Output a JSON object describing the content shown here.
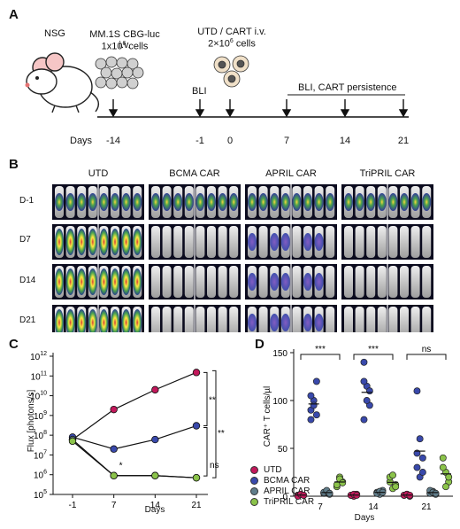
{
  "panels": {
    "a": "A",
    "b": "B",
    "c": "C",
    "d": "D"
  },
  "timeline": {
    "mouse_label": "NSG",
    "injection_label_1": "MM.1S CBG-luc i.v.",
    "injection_label_2_prefix": "1x10",
    "injection_label_2_exp": "6",
    "injection_label_2_suffix": " cells",
    "treatment_label_1": "UTD / CART i.v.",
    "treatment_label_2": "2×10",
    "treatment_label_2_exp": "6",
    "treatment_label_2_suffix": " cells",
    "bli_label": "BLI",
    "persistence_label": "BLI, CART persistence",
    "days_label": "Days",
    "days": [
      "-14",
      "-1",
      "0",
      "7",
      "14",
      "21"
    ]
  },
  "imaging": {
    "groups": [
      "UTD",
      "BCMA CAR",
      "APRIL CAR",
      "TriPRIL CAR"
    ],
    "timepoints": [
      "D-1",
      "D7",
      "D14",
      "D21"
    ]
  },
  "colors": {
    "utd": "#c2185b",
    "bcma": "#3949ab",
    "april": "#607d8b",
    "tripril": "#8bc34a"
  },
  "chart_data": [
    {
      "type": "line",
      "xlabel": "Days",
      "ylabel": "Flux [photons/s]",
      "x": [
        "-1",
        "7",
        "14",
        "21"
      ],
      "y_scale": "log",
      "ylim": [
        100000,
        1000000000000
      ],
      "yticks": [
        "10",
        "10",
        "10",
        "10",
        "10",
        "10",
        "10",
        "10"
      ],
      "ytick_exps": [
        "5",
        "6",
        "7",
        "8",
        "9",
        "10",
        "11",
        "12"
      ],
      "series": [
        {
          "name": "UTD",
          "values": [
            60000000,
            2000000000,
            20000000000,
            150000000000
          ]
        },
        {
          "name": "BCMA CAR",
          "values": [
            80000000,
            20000000,
            60000000,
            300000000
          ]
        },
        {
          "name": "APRIL CAR",
          "values": [
            60000000,
            900000,
            900000,
            700000
          ]
        },
        {
          "name": "TriPRIL CAR",
          "values": [
            50000000,
            900000,
            900000,
            700000
          ]
        }
      ],
      "annotations": [
        "**",
        "**",
        "ns",
        "*"
      ]
    },
    {
      "type": "scatter",
      "xlabel": "Days",
      "ylabel": "CAR⁺ T cells/µl",
      "categories": [
        "7",
        "14",
        "21"
      ],
      "ylim": [
        0,
        150
      ],
      "yticks": [
        "0",
        "50",
        "100",
        "150"
      ],
      "series": [
        {
          "name": "UTD",
          "values": [
            [
              1,
              2,
              1,
              0,
              2,
              1
            ],
            [
              1,
              0,
              2,
              1,
              2,
              1
            ],
            [
              1,
              2,
              0,
              1,
              2,
              1
            ]
          ]
        },
        {
          "name": "BCMA CAR",
          "values": [
            [
              90,
              100,
              85,
              80,
              95,
              120,
              105
            ],
            [
              140,
              115,
              95,
              80,
              100,
              110,
              120
            ],
            [
              110,
              60,
              40,
              30,
              20,
              25,
              45
            ]
          ]
        },
        {
          "name": "APRIL CAR",
          "values": [
            [
              3,
              5,
              2,
              4,
              6,
              3
            ],
            [
              4,
              2,
              6,
              3,
              5,
              4
            ],
            [
              3,
              5,
              2,
              6,
              4,
              3
            ]
          ]
        },
        {
          "name": "TriPRIL CAR",
          "values": [
            [
              10,
              20,
              15,
              12,
              18,
              14
            ],
            [
              15,
              8,
              12,
              20,
              22,
              10
            ],
            [
              40,
              25,
              15,
              30,
              10,
              20
            ]
          ]
        }
      ],
      "significance": [
        "***",
        "***",
        "ns"
      ]
    }
  ],
  "legend": [
    "UTD",
    "BCMA CAR",
    "APRIL CAR",
    "TriPRIL CAR"
  ]
}
